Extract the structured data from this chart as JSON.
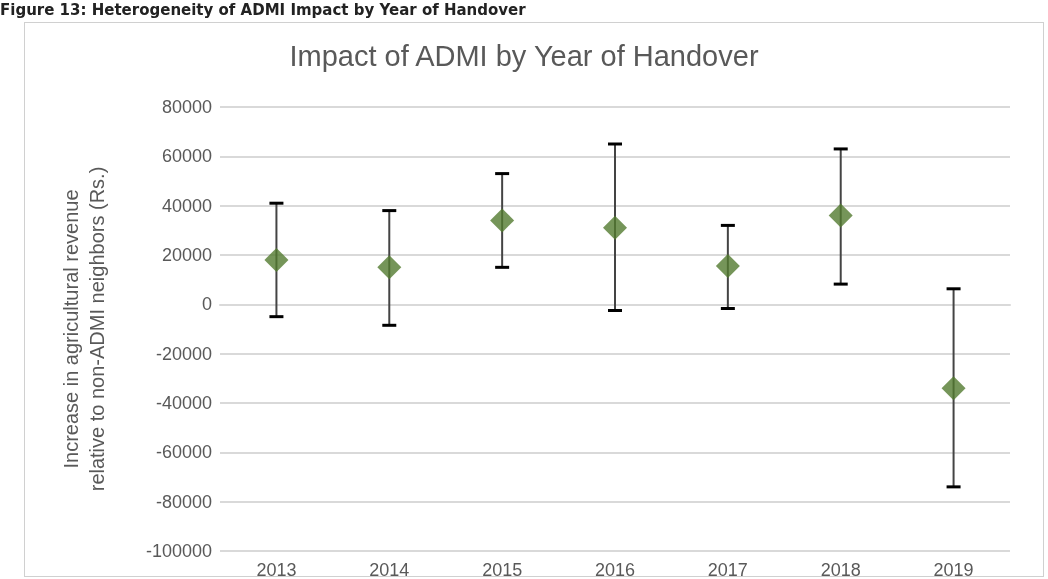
{
  "chart_data": {
    "type": "scatter",
    "title": "Impact of ADMI by Year of Handover",
    "ylabel": "Increase in agricultural revenue relative to non-ADMI neighbors (Rs.)",
    "annotations": [
      "Figure 13: Heterogeneity of ADMI Impact by Year of Handover"
    ],
    "categories": [
      "2013",
      "2014",
      "2015",
      "2016",
      "2017",
      "2018",
      "2019"
    ],
    "series": [
      {
        "color": "#537a30",
        "values": [
          18000,
          15000,
          34000,
          31000,
          15500,
          36000,
          -34000
        ],
        "errors": [
          [
            -5000,
            41000
          ],
          [
            -8500,
            38000
          ],
          [
            15000,
            53000
          ],
          [
            -2500,
            65000
          ],
          [
            -1700,
            32000
          ],
          [
            8200,
            63000
          ],
          [
            -74000,
            6300
          ]
        ]
      }
    ],
    "ylim": [
      -100000,
      80000
    ],
    "yticks": [
      -100000,
      -80000,
      -60000,
      -40000,
      -20000,
      0,
      20000,
      40000,
      60000,
      80000
    ],
    "grid": "y",
    "marker": "diamond"
  }
}
